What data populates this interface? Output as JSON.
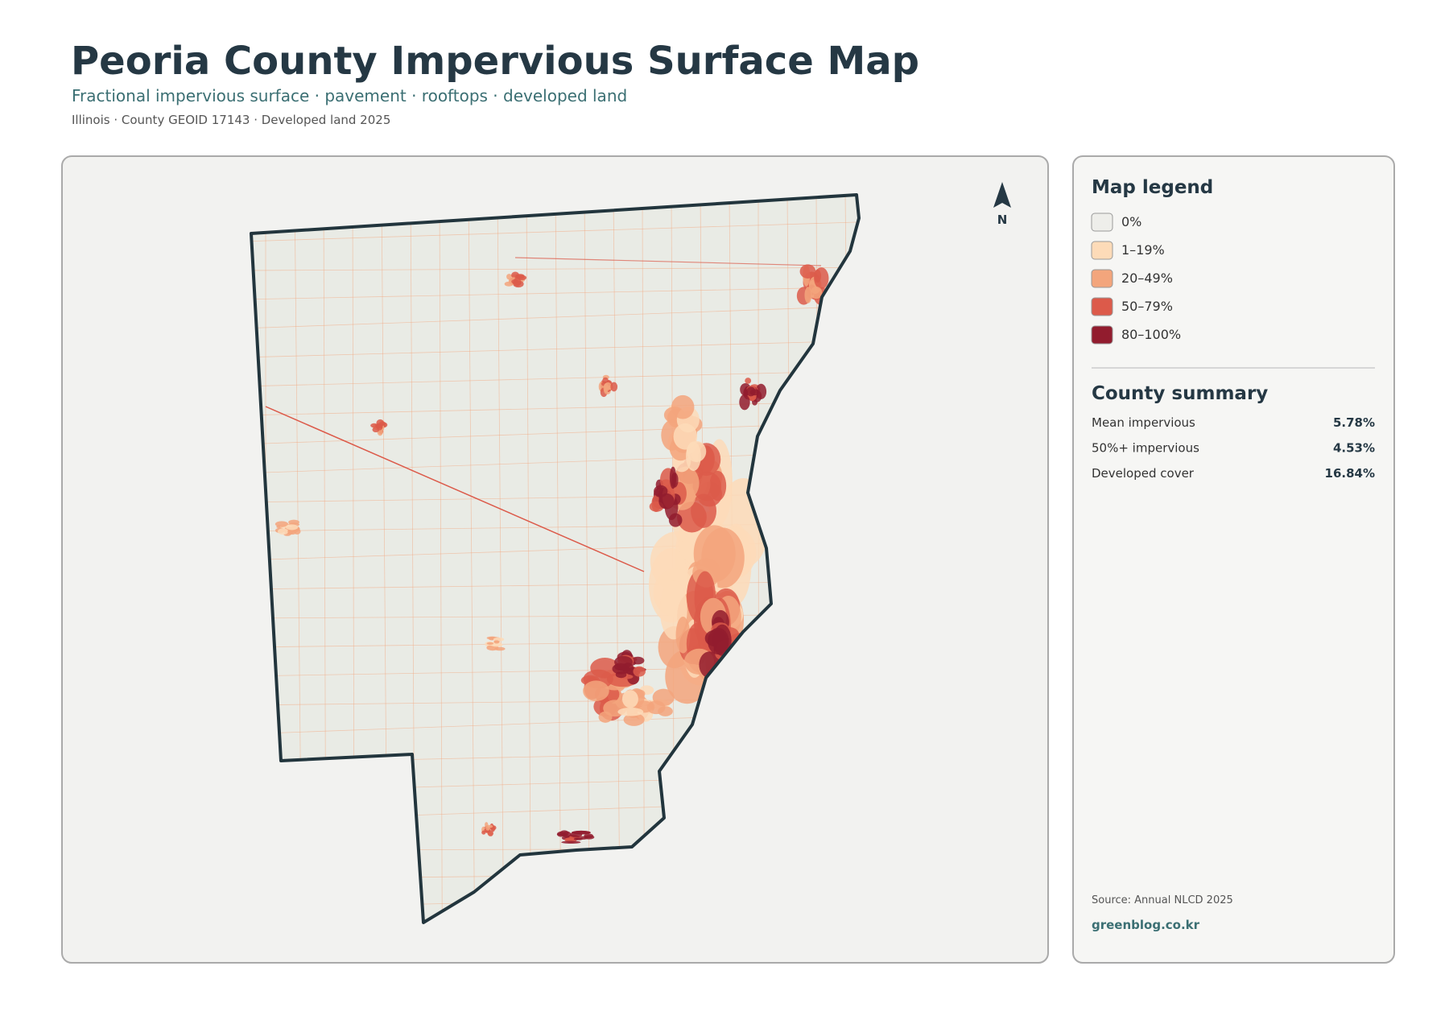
{
  "header": {
    "title": "Peoria County Impervious Surface Map",
    "subtitle": "Fractional impervious surface · pavement · rooftops · developed land",
    "meta": "Illinois · County GEOID 17143 · Developed land 2025"
  },
  "map": {
    "north_label": "N"
  },
  "legend": {
    "title": "Map legend",
    "items": [
      {
        "label": "0%",
        "color": "#eeeeea"
      },
      {
        "label": "1–19%",
        "color": "#fddbb8"
      },
      {
        "label": "20–49%",
        "color": "#f3a57c"
      },
      {
        "label": "50–79%",
        "color": "#dc5a4a"
      },
      {
        "label": "80–100%",
        "color": "#921c2e"
      }
    ]
  },
  "summary": {
    "title": "County summary",
    "rows": [
      {
        "label": "Mean impervious",
        "value": "5.78%"
      },
      {
        "label": "50%+ impervious",
        "value": "4.53%"
      },
      {
        "label": "Developed cover",
        "value": "16.84%"
      }
    ]
  },
  "footer": {
    "source": "Source: Annual NLCD 2025",
    "site": "greenblog.co.kr"
  }
}
